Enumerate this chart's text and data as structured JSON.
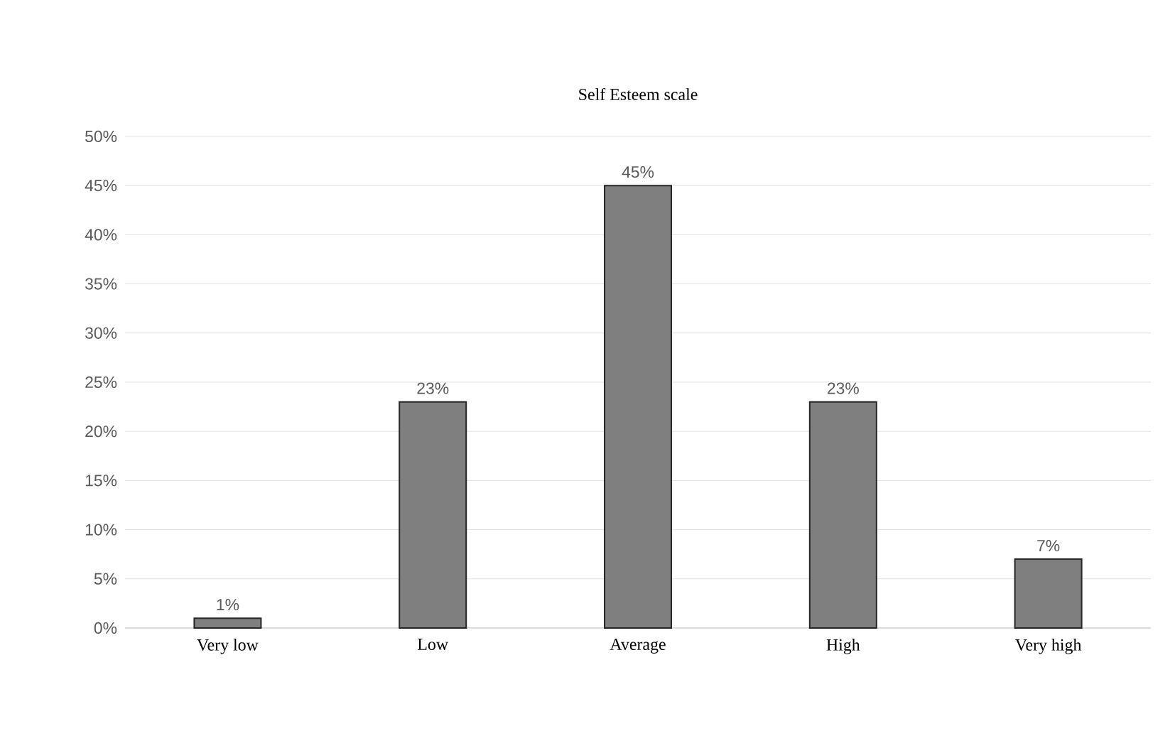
{
  "chart_data": {
    "type": "bar",
    "title": "Self Esteem scale",
    "categories": [
      "Very low",
      "Low",
      "Average",
      "High",
      "Very high"
    ],
    "values": [
      1,
      23,
      45,
      23,
      7
    ],
    "value_labels": [
      "1%",
      "23%",
      "45%",
      "23%",
      "7%"
    ],
    "color": "#7f7f7f",
    "ylim": [
      0,
      50
    ],
    "yticks": [
      {
        "value": 0,
        "label": "0%"
      },
      {
        "value": 5,
        "label": "5%"
      },
      {
        "value": 10,
        "label": "10%"
      },
      {
        "value": 15,
        "label": "15%"
      },
      {
        "value": 20,
        "label": "20%"
      },
      {
        "value": 25,
        "label": "25%"
      },
      {
        "value": 30,
        "label": "30%"
      },
      {
        "value": 35,
        "label": "35%"
      },
      {
        "value": 40,
        "label": "40%"
      },
      {
        "value": 45,
        "label": "45%"
      },
      {
        "value": 50,
        "label": "50%"
      }
    ],
    "grid": "y"
  }
}
